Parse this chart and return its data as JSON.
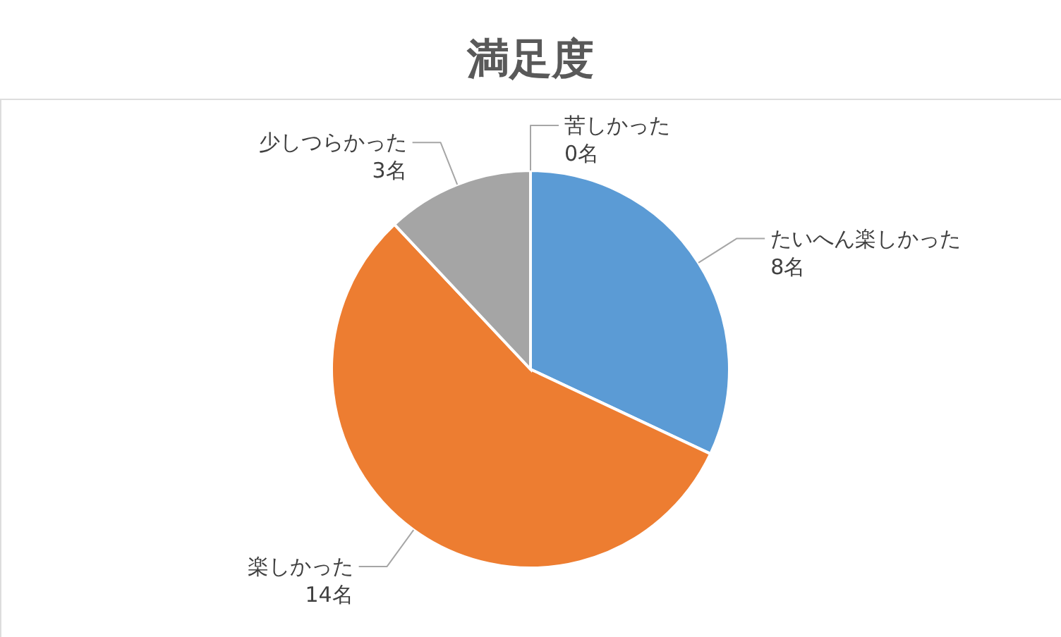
{
  "chart_data": {
    "type": "pie",
    "title": "満足度",
    "categories": [
      "たいへん楽しかった",
      "楽しかった",
      "少しつらかった",
      "苦しかった"
    ],
    "values": [
      8,
      14,
      3,
      0
    ],
    "colors": [
      "#5b9bd5",
      "#ed7d31",
      "#a5a5a5",
      "#ffc000"
    ],
    "value_labels": [
      "8名",
      "14名",
      "3名",
      "0名"
    ]
  }
}
